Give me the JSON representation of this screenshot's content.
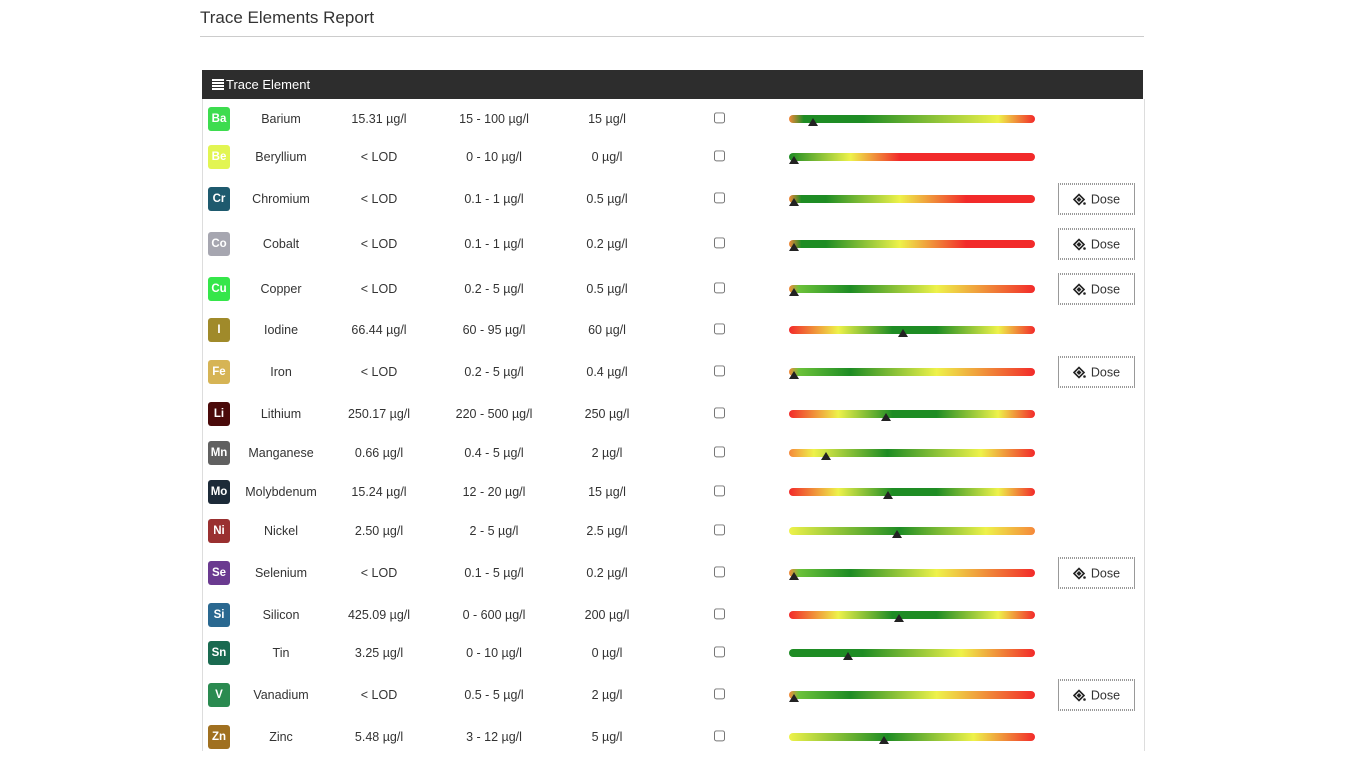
{
  "header": {
    "title": "Trace Elements Report"
  },
  "table": {
    "heading": "Trace Element",
    "rows": [
      {
        "symbol": "Ba",
        "name": "Barium",
        "measured": "15.31 µg/l",
        "range": "15 - 100 µg/l",
        "target": "15 µg/l",
        "color": "#3ddc4f"
      },
      {
        "symbol": "Be",
        "name": "Beryllium",
        "measured": "< LOD",
        "range": "0 - 10 µg/l",
        "target": "0 µg/l",
        "color": "#e2f552"
      },
      {
        "symbol": "Cr",
        "name": "Chromium",
        "measured": "< LOD",
        "range": "0.1 - 1 µg/l",
        "target": "0.5 µg/l",
        "color": "#1e5a6e",
        "action": "Dose"
      },
      {
        "symbol": "Co",
        "name": "Cobalt",
        "measured": "< LOD",
        "range": "0.1 - 1 µg/l",
        "target": "0.2 µg/l",
        "color": "#a6a6b0",
        "action": "Dose"
      },
      {
        "symbol": "Cu",
        "name": "Copper",
        "measured": "< LOD",
        "range": "0.2 - 5 µg/l",
        "target": "0.5 µg/l",
        "color": "#35e64a",
        "action": "Dose"
      },
      {
        "symbol": "I",
        "name": "Iodine",
        "measured": "66.44 µg/l",
        "range": "60 - 95 µg/l",
        "target": "60 µg/l",
        "color": "#a08a2a"
      },
      {
        "symbol": "Fe",
        "name": "Iron",
        "measured": "< LOD",
        "range": "0.2 - 5 µg/l",
        "target": "0.4 µg/l",
        "color": "#d6b455",
        "action": "Dose"
      },
      {
        "symbol": "Li",
        "name": "Lithium",
        "measured": "250.17 µg/l",
        "range": "220 - 500 µg/l",
        "target": "250 µg/l",
        "color": "#4a0a0a"
      },
      {
        "symbol": "Mn",
        "name": "Manganese",
        "measured": "0.66 µg/l",
        "range": "0.4 - 5 µg/l",
        "target": "2 µg/l",
        "color": "#606060"
      },
      {
        "symbol": "Mo",
        "name": "Molybdenum",
        "measured": "15.24 µg/l",
        "range": "12 - 20 µg/l",
        "target": "15 µg/l",
        "color": "#1c2a38"
      },
      {
        "symbol": "Ni",
        "name": "Nickel",
        "measured": "2.50 µg/l",
        "range": "2 - 5 µg/l",
        "target": "2.5 µg/l",
        "color": "#9a3030"
      },
      {
        "symbol": "Se",
        "name": "Selenium",
        "measured": "< LOD",
        "range": "0.1 - 5 µg/l",
        "target": "0.2 µg/l",
        "color": "#6a3a90",
        "action": "Dose"
      },
      {
        "symbol": "Si",
        "name": "Silicon",
        "measured": "425.09 µg/l",
        "range": "0 - 600 µg/l",
        "target": "200 µg/l",
        "color": "#2a6890"
      },
      {
        "symbol": "Sn",
        "name": "Tin",
        "measured": "3.25 µg/l",
        "range": "0 - 10 µg/l",
        "target": "0 µg/l",
        "color": "#1a6a50"
      },
      {
        "symbol": "V",
        "name": "Vanadium",
        "measured": "< LOD",
        "range": "0.5 - 5 µg/l",
        "target": "2 µg/l",
        "color": "#2a8a50",
        "action": "Dose"
      },
      {
        "symbol": "Zn",
        "name": "Zinc",
        "measured": "5.48 µg/l",
        "range": "3 - 12 µg/l",
        "target": "5 µg/l",
        "color": "#a07020"
      }
    ]
  }
}
